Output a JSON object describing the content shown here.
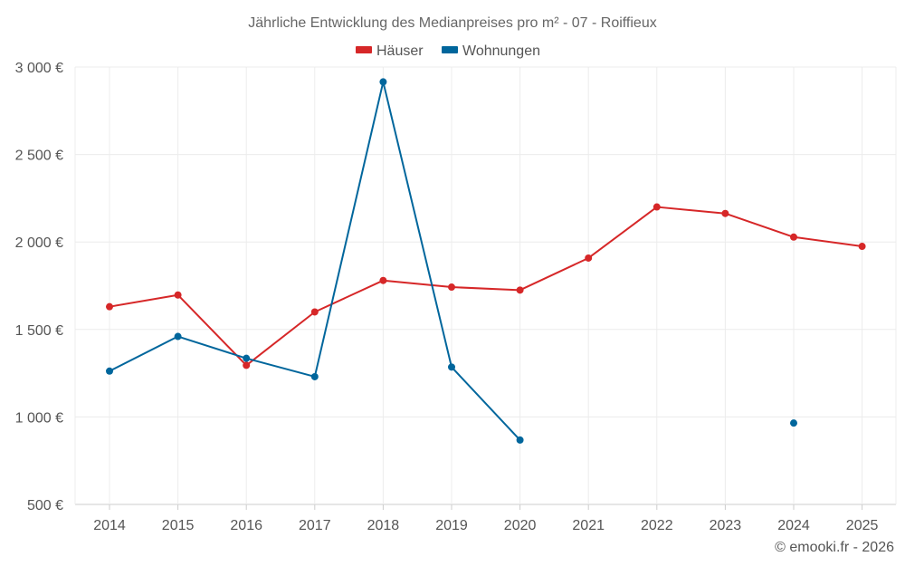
{
  "chart_data": {
    "type": "line",
    "title": "Jährliche Entwicklung des Medianpreises pro m² - 07 - Roiffieux",
    "categories": [
      "2014",
      "2015",
      "2016",
      "2017",
      "2018",
      "2019",
      "2020",
      "2021",
      "2022",
      "2023",
      "2024",
      "2025"
    ],
    "series": [
      {
        "name": "Häuser",
        "color": "#d62728",
        "values": [
          1630,
          1697,
          1295,
          1600,
          1780,
          1742,
          1725,
          1908,
          2200,
          2163,
          2028,
          1975
        ]
      },
      {
        "name": "Wohnungen",
        "color": "#00669c",
        "values": [
          1262,
          1460,
          1335,
          1230,
          2915,
          1285,
          868,
          null,
          null,
          null,
          965,
          null
        ]
      }
    ],
    "ylim": [
      500,
      3000
    ],
    "yticks": [
      500,
      1000,
      1500,
      2000,
      2500,
      3000
    ],
    "ytick_labels": [
      "500 €",
      "1 000 €",
      "1 500 €",
      "2 000 €",
      "2 500 €",
      "3 000 €"
    ],
    "legend_position": "top-center",
    "grid": true
  },
  "credit": "© emooki.fr - 2026"
}
